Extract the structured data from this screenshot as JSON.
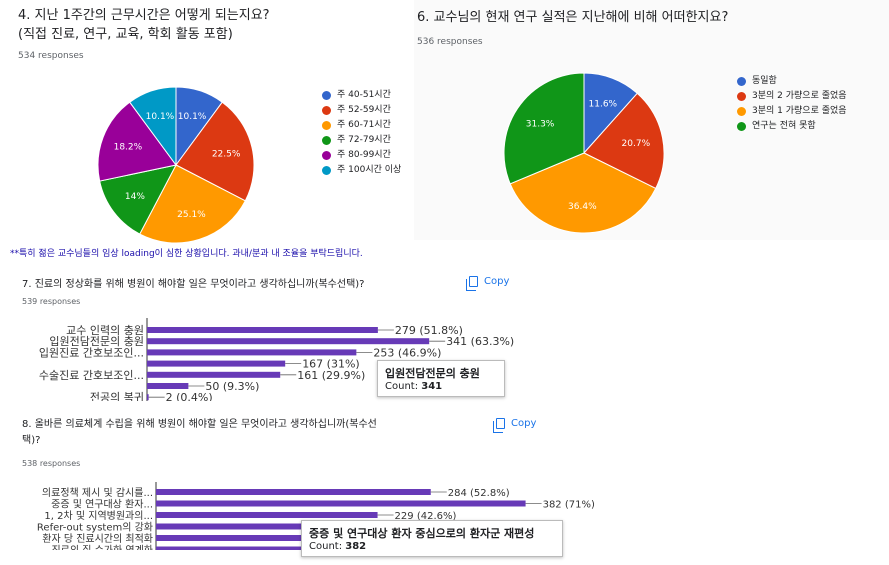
{
  "colors": {
    "blue": "#3366cc",
    "red": "#dc3912",
    "orange": "#ff9900",
    "green": "#109618",
    "purple": "#990099",
    "teal": "#0099c6",
    "bar": "#673ab7"
  },
  "notice": "**특히 젊은 교수님들의 임상 loading이 심한 상황입니다. 과내/분과 내 조율을 부탁드립니다.",
  "q4": {
    "title_line1": "4. 지난 1주간의 근무시간은 어떻게 되는지요?",
    "title_line2": "(직접 진료, 연구, 교육, 학회 활동 포함)",
    "responses": "534 responses"
  },
  "q6": {
    "title": "6. 교수님의 현재 연구 실적은 지난해에 비해 어떠한지요?",
    "responses": "536 responses"
  },
  "q7": {
    "title": "7. 진료의 정상화를 위해 병원이 해야할 일은 무엇이라고 생각하십니까(복수선택)?",
    "responses": "539 responses",
    "copy": "Copy",
    "tooltip_label": "입원전담전문의 충원",
    "tooltip_count_label": "Count: ",
    "tooltip_count": "341"
  },
  "q8": {
    "title_line1": "8. 올바른 의료체계 수립을 위해 병원이 해야할 일은 무엇이라고 생각하십니까(복수선",
    "title_line2": "택)?",
    "responses": "538 responses",
    "copy": "Copy",
    "tooltip_label": "중증 및 연구대상 환자 중심으로의 환자군 재편성",
    "tooltip_count_label": "Count: ",
    "tooltip_count": "382"
  },
  "chart_data": [
    {
      "type": "pie",
      "title": "4. 지난 1주간의 근무시간은 어떻게 되는지요?",
      "categories": [
        "주 40-51시간",
        "주 52-59시간",
        "주 60-71시간",
        "주 72-79시간",
        "주 80-99시간",
        "주 100시간 이상"
      ],
      "values": [
        10.1,
        22.5,
        25.1,
        14,
        18.2,
        10.1
      ],
      "labels": [
        "10.1%",
        "22.5%",
        "25.1%",
        "14%",
        "18.2%",
        "10.1%"
      ],
      "colors": [
        "#3366cc",
        "#dc3912",
        "#ff9900",
        "#109618",
        "#990099",
        "#0099c6"
      ],
      "legend": "right"
    },
    {
      "type": "pie",
      "title": "6. 교수님의 현재 연구 실적은 지난해에 비해 어떠한지요?",
      "categories": [
        "동일함",
        "3분의 2 가량으로 줄었음",
        "3분의 1 가량으로 줄었음",
        "연구는 전혀 못함"
      ],
      "values": [
        11.6,
        20.7,
        36.4,
        31.3
      ],
      "labels": [
        "11.6%",
        "20.7%",
        "36.4%",
        "31.3%"
      ],
      "colors": [
        "#3366cc",
        "#dc3912",
        "#ff9900",
        "#109618"
      ],
      "legend": "right"
    },
    {
      "type": "bar",
      "orientation": "horizontal",
      "title": "7. 진료의 정상화를 위해 병원이 해야할 일은 무엇이라고 생각하십니까(복수선택)?",
      "categories": [
        "교수 인력의 충원",
        "입원전담전문의 충원",
        "입원진료 간호보조인...",
        "",
        "수술진료 간호보조인...",
        "",
        "전공의 복귀"
      ],
      "values": [
        279,
        341,
        253,
        167,
        161,
        50,
        2
      ],
      "labels": [
        "279 (51.8%)",
        "341 (63.3%)",
        "253 (46.9%)",
        "167 (31%)",
        "161 (29.9%)",
        "50 (9.3%)",
        "2 (0.4%)"
      ],
      "xlim": [
        0,
        400
      ]
    },
    {
      "type": "bar",
      "orientation": "horizontal",
      "title": "8. 올바른 의료체계 수립을 위해 병원이 해야할 일은 무엇이라고 생각하십니까(복수선택)?",
      "categories": [
        "의료정책 제시 및 감시를...",
        "중증 및 연구대상 환자...",
        "1, 2차 및 지역병원과의...",
        "Refer-out system의 강화",
        "환자 당 진료시간의 최적화",
        "진료의 질 수가화 연계화"
      ],
      "values": [
        284,
        382,
        229,
        210,
        175,
        160
      ],
      "labels": [
        "284 (52.8%)",
        "382 (71%)",
        "229 (42.6%)",
        "",
        "",
        ""
      ],
      "xlim": [
        0,
        400
      ]
    }
  ]
}
